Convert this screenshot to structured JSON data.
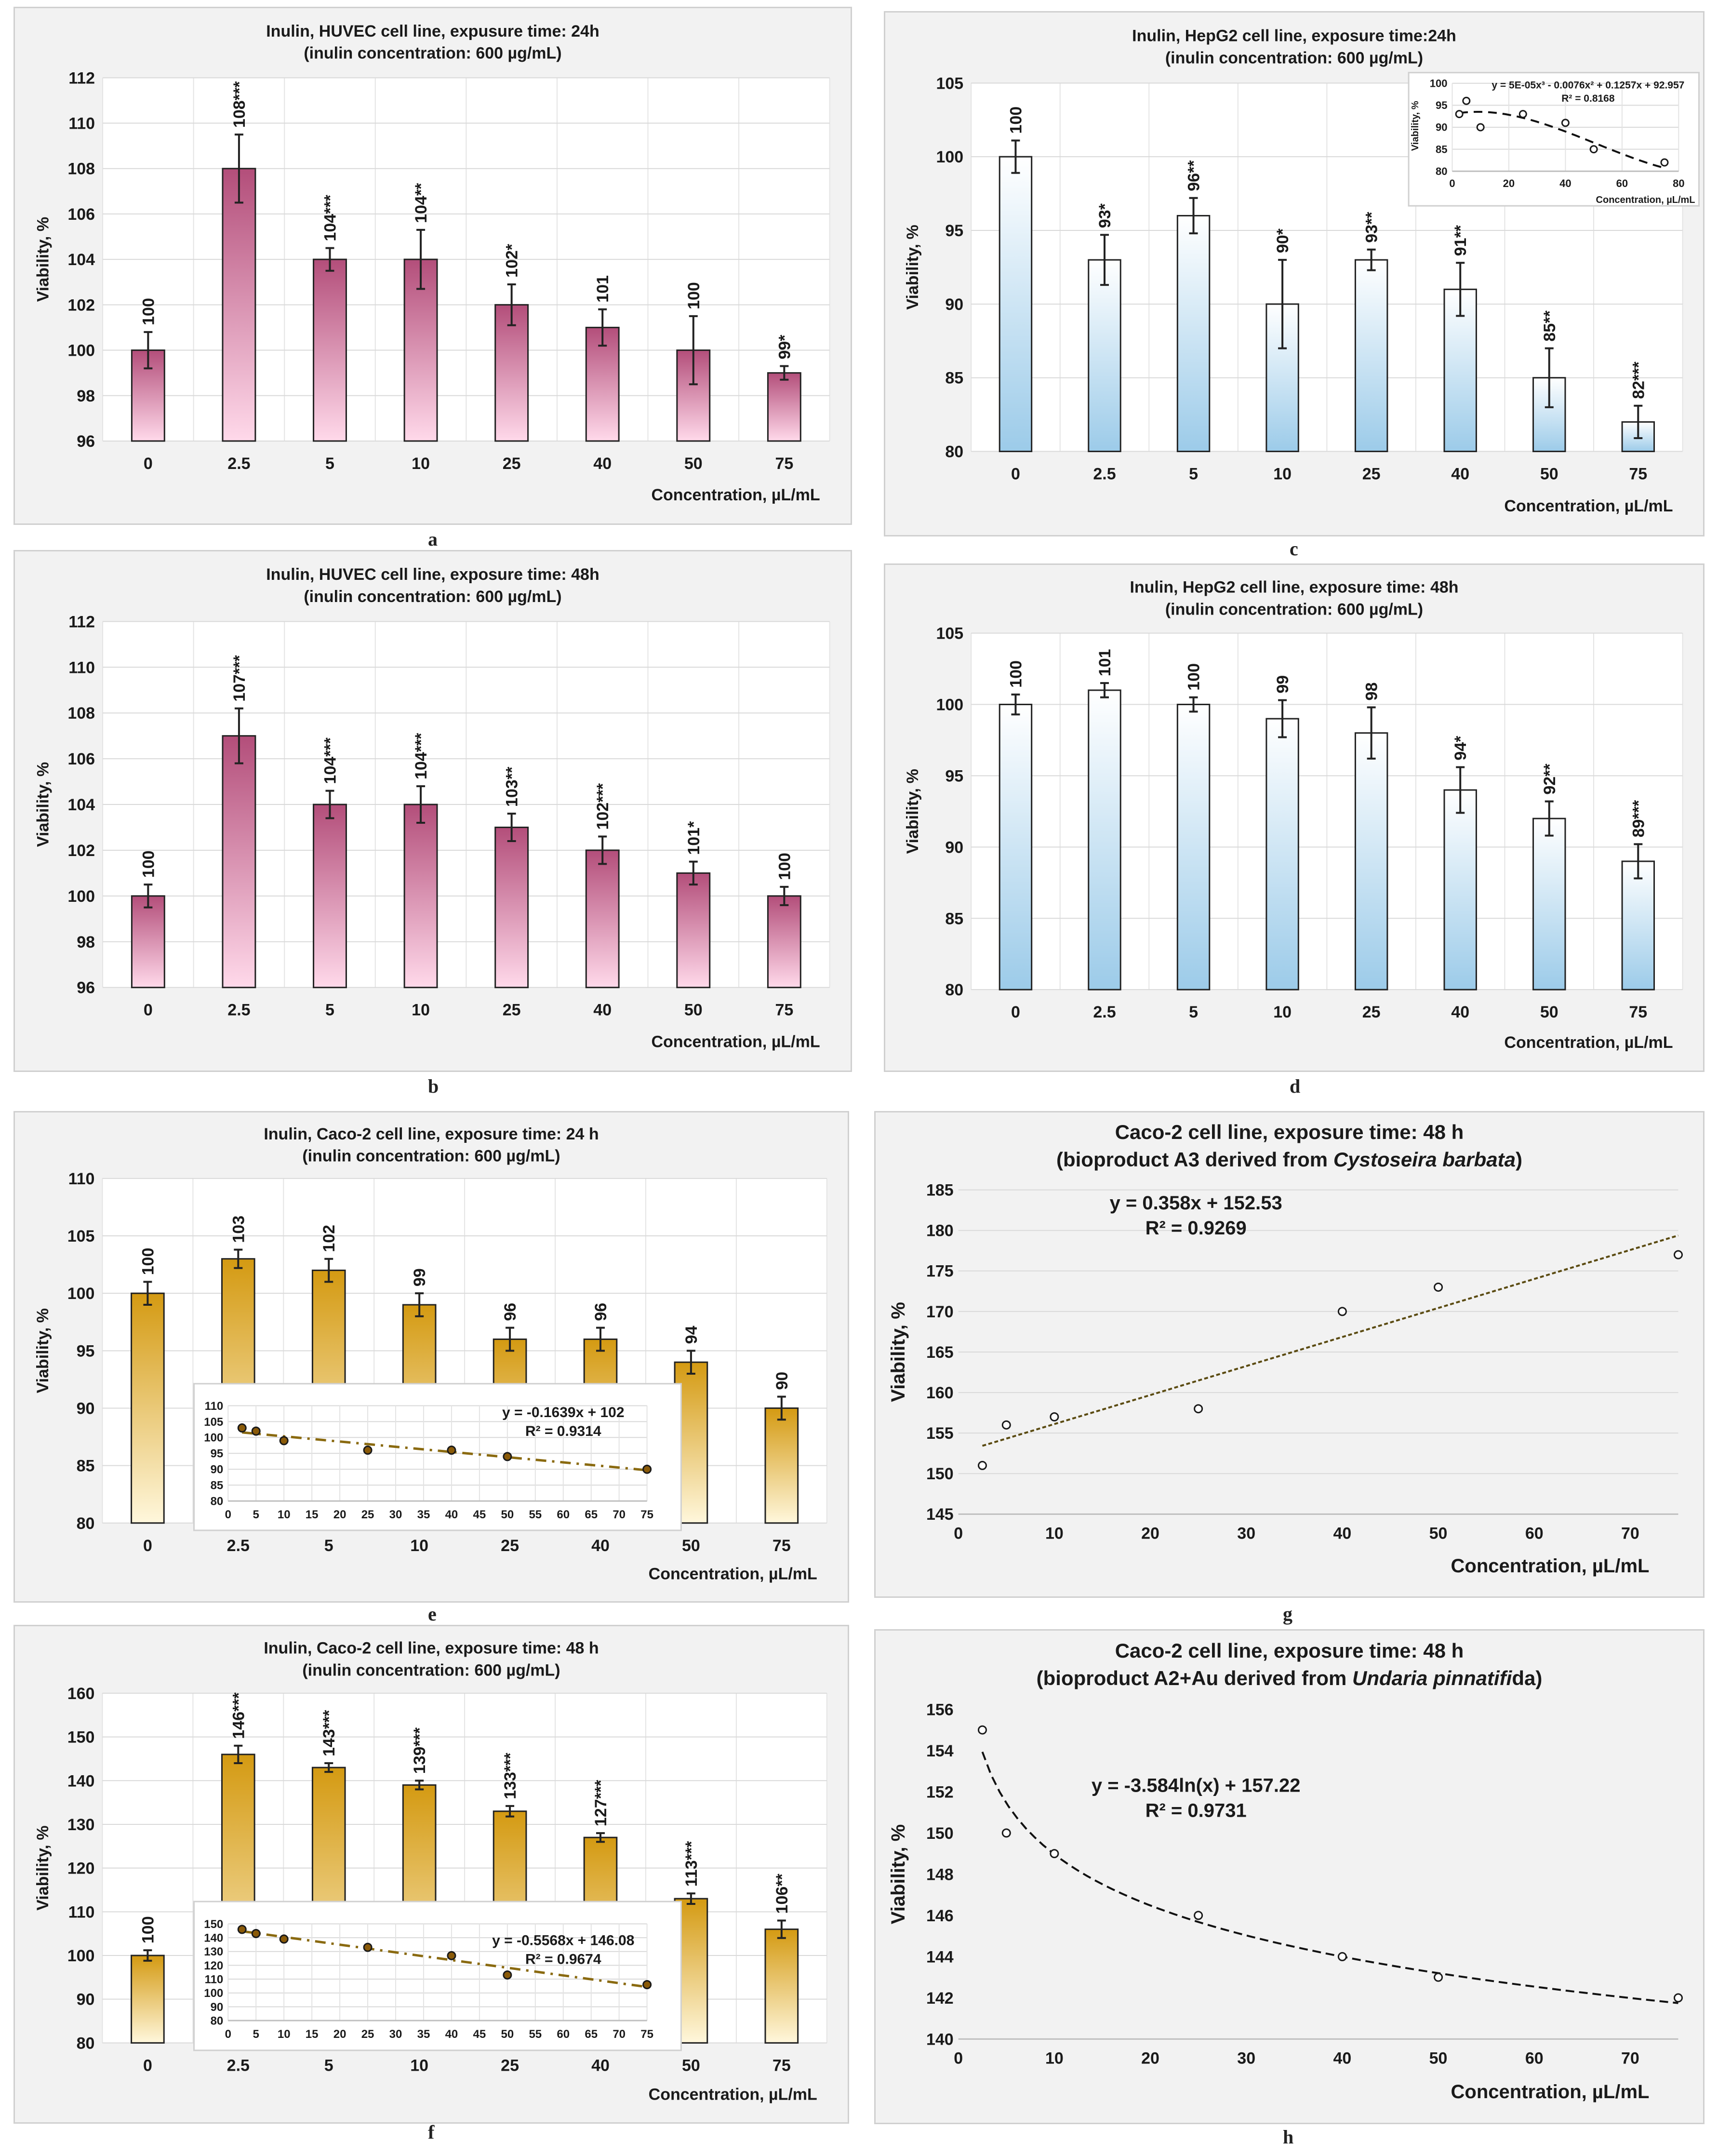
{
  "chart_data": [
    {
      "id": "a",
      "type": "bar",
      "panel_label": "a",
      "title": [
        "Inulin, HUVEC cell line, expusure time: 24h",
        "(inulin concentration: 600 µg/mL)"
      ],
      "xlabel": "Concentration, µL/mL",
      "ylabel": "Viability, %",
      "categories": [
        "0",
        "2.5",
        "5",
        "10",
        "25",
        "40",
        "50",
        "75"
      ],
      "values": [
        100,
        108,
        104,
        104,
        102,
        101,
        100,
        99
      ],
      "errors": [
        0.8,
        1.5,
        0.5,
        1.3,
        0.9,
        0.8,
        1.5,
        0.3
      ],
      "data_labels": [
        "100",
        "108***",
        "104***",
        "104**",
        "102*",
        "101",
        "100",
        "99*"
      ],
      "ylim": [
        96,
        112
      ],
      "ystep": 2,
      "grid": true,
      "color_top": "#b34e7a",
      "color_bottom": "#ffd9ea"
    },
    {
      "id": "b",
      "type": "bar",
      "panel_label": "b",
      "title": [
        "Inulin, HUVEC cell line, exposure time: 48h",
        "(inulin concentration: 600 µg/mL)"
      ],
      "xlabel": "Concentration, µL/mL",
      "ylabel": "Viability, %",
      "categories": [
        "0",
        "2.5",
        "5",
        "10",
        "25",
        "40",
        "50",
        "75"
      ],
      "values": [
        100,
        107,
        104,
        104,
        103,
        102,
        101,
        100
      ],
      "errors": [
        0.5,
        1.2,
        0.6,
        0.8,
        0.6,
        0.6,
        0.5,
        0.4
      ],
      "data_labels": [
        "100",
        "107***",
        "104***",
        "104***",
        "103**",
        "102***",
        "101*",
        "100"
      ],
      "ylim": [
        96,
        112
      ],
      "ystep": 2,
      "grid": true,
      "color_top": "#b34e7a",
      "color_bottom": "#ffd9ea"
    },
    {
      "id": "c",
      "type": "bar",
      "panel_label": "c",
      "title": [
        "Inulin, HepG2 cell line, exposure time:24h",
        "(inulin concentration: 600 µg/mL)"
      ],
      "xlabel": "Concentration, µL/mL",
      "ylabel": "Viability, %",
      "categories": [
        "0",
        "2.5",
        "5",
        "10",
        "25",
        "40",
        "50",
        "75"
      ],
      "values": [
        100,
        93,
        96,
        90,
        93,
        91,
        85,
        82
      ],
      "errors": [
        1.1,
        1.7,
        1.2,
        3.0,
        0.7,
        1.8,
        2.0,
        1.1
      ],
      "data_labels": [
        "100",
        "93*",
        "96**",
        "90*",
        "93**",
        "91**",
        "85**",
        "82***"
      ],
      "ylim": [
        80,
        105
      ],
      "ystep": 5,
      "grid": true,
      "color_top": "#ffffff",
      "color_bottom": "#9ccbe9",
      "inset": {
        "type": "scatter",
        "x": [
          2.5,
          5,
          10,
          25,
          40,
          50,
          75
        ],
        "y": [
          93,
          96,
          90,
          93,
          91,
          85,
          82
        ],
        "xlim": [
          0,
          80
        ],
        "xstep": 20,
        "ylim": [
          80,
          100
        ],
        "ystep": 5,
        "xlabel": "Concentration, µL/mL",
        "ylabel": "Viability, %",
        "trend": {
          "kind": "poly3",
          "coef": [
            5e-05,
            -0.0076,
            0.1257,
            92.957
          ]
        },
        "equation": "y = 5E-05x³ - 0.0076x² + 0.1257x + 92.957",
        "r2": "R² = 0.8168"
      }
    },
    {
      "id": "d",
      "type": "bar",
      "panel_label": "d",
      "title": [
        "Inulin, HepG2 cell line, exposure time: 48h",
        "(inulin concentration: 600 µg/mL)"
      ],
      "xlabel": "Concentration, µL/mL",
      "ylabel": "Viability, %",
      "categories": [
        "0",
        "2.5",
        "5",
        "10",
        "25",
        "40",
        "50",
        "75"
      ],
      "values": [
        100,
        101,
        100,
        99,
        98,
        94,
        92,
        89
      ],
      "errors": [
        0.7,
        0.5,
        0.5,
        1.3,
        1.8,
        1.6,
        1.2,
        1.2
      ],
      "data_labels": [
        "100",
        "101",
        "100",
        "99",
        "98",
        "94*",
        "92**",
        "89***"
      ],
      "ylim": [
        80,
        105
      ],
      "ystep": 5,
      "grid": true,
      "color_top": "#ffffff",
      "color_bottom": "#9ccbe9"
    },
    {
      "id": "e",
      "type": "bar",
      "panel_label": "e",
      "title": [
        "Inulin, Caco-2 cell line, exposure time: 24 h",
        "(inulin concentration:  600 µg/mL)"
      ],
      "xlabel": "Concentration, µL/mL",
      "ylabel": "Viability, %",
      "categories": [
        "0",
        "2.5",
        "5",
        "10",
        "25",
        "40",
        "50",
        "75"
      ],
      "values": [
        100,
        103,
        102,
        99,
        96,
        96,
        94,
        90
      ],
      "errors": [
        1.0,
        0.8,
        1.0,
        1.0,
        1.0,
        1.0,
        1.0,
        1.0
      ],
      "data_labels": [
        "100",
        "103",
        "102",
        "99",
        "96",
        "96",
        "94",
        "90"
      ],
      "ylim": [
        80,
        110
      ],
      "ystep": 5,
      "grid": true,
      "color_top": "#d49a12",
      "color_bottom": "#fff7dc",
      "inset": {
        "type": "scatter",
        "x": [
          2.5,
          5,
          10,
          25,
          40,
          50,
          75
        ],
        "y": [
          103,
          102,
          99,
          96,
          96,
          94,
          90
        ],
        "xlim": [
          0,
          75
        ],
        "xstep": 5,
        "ylim": [
          80,
          110
        ],
        "ystep": 5,
        "trend": {
          "kind": "linear",
          "coef": [
            -0.1639,
            102
          ]
        },
        "equation": "y = -0.1639x + 102",
        "r2": "R² = 0.9314"
      }
    },
    {
      "id": "f",
      "type": "bar",
      "panel_label": "f",
      "title": [
        "Inulin, Caco-2 cell line, exposure time: 48 h",
        "(inulin concentration:  600 µg/mL)"
      ],
      "xlabel": "Concentration, µL/mL",
      "ylabel": "Viability, %",
      "categories": [
        "0",
        "2.5",
        "5",
        "10",
        "25",
        "40",
        "50",
        "75"
      ],
      "values": [
        100,
        146,
        143,
        139,
        133,
        127,
        113,
        106
      ],
      "errors": [
        1.2,
        2.0,
        1.0,
        1.0,
        1.2,
        1.0,
        1.2,
        2.0
      ],
      "data_labels": [
        "100",
        "146***",
        "143***",
        "139***",
        "133***",
        "127***",
        "113***",
        "106**"
      ],
      "ylim": [
        80,
        160
      ],
      "ystep": 10,
      "grid": true,
      "color_top": "#d49a12",
      "color_bottom": "#fff7dc",
      "inset": {
        "type": "scatter",
        "x": [
          2.5,
          5,
          10,
          25,
          40,
          50,
          75
        ],
        "y": [
          146,
          143,
          139,
          133,
          127,
          113,
          106
        ],
        "xlim": [
          0,
          75
        ],
        "xstep": 5,
        "ylim": [
          80,
          150
        ],
        "ystep": 10,
        "trend": {
          "kind": "linear",
          "coef": [
            -0.5568,
            146.08
          ]
        },
        "equation": "y = -0.5568x + 146.08",
        "r2": "R² = 0.9674"
      }
    },
    {
      "id": "g",
      "type": "scatter",
      "panel_label": "g",
      "title": [
        "Caco-2 cell line,  exposure time:  48 h",
        "(bioproduct A3 derived from |Cystoseira barbata|)"
      ],
      "xlabel": "Concentration, µL/mL",
      "ylabel": "Viability, %",
      "x": [
        2.5,
        5,
        10,
        25,
        40,
        50,
        75
      ],
      "y": [
        151,
        156,
        157,
        158,
        170,
        173,
        177
      ],
      "xlim": [
        0,
        75
      ],
      "xticks": [
        0,
        10,
        20,
        30,
        40,
        50,
        60,
        70
      ],
      "ylim": [
        145,
        185
      ],
      "ystep": 5,
      "grid": true,
      "trend": {
        "kind": "linear",
        "coef": [
          0.358,
          152.53
        ],
        "color": "#5a4a10"
      },
      "equation": "y = 0.358x + 152.53",
      "r2": "R² = 0.9269"
    },
    {
      "id": "h",
      "type": "scatter",
      "panel_label": "h",
      "title": [
        "Caco-2 cell line,  exposure time:  48 h",
        "(bioproduct A2+Au derived from |Undaria pinnatifi|da)"
      ],
      "xlabel": "Concentration, µL/mL",
      "ylabel": "Viability, %",
      "x": [
        2.5,
        5,
        10,
        25,
        40,
        50,
        75
      ],
      "y": [
        155,
        150,
        149,
        146,
        144,
        143,
        142
      ],
      "xlim": [
        0,
        75
      ],
      "xticks": [
        0,
        10,
        20,
        30,
        40,
        50,
        60,
        70
      ],
      "ylim": [
        140,
        156
      ],
      "ystep": 2,
      "grid": false,
      "trend": {
        "kind": "log",
        "coef": [
          -3.584,
          157.22
        ],
        "color": "#111111"
      },
      "equation": "y = -3.584ln(x) + 157.22",
      "r2": "R² = 0.9731"
    }
  ]
}
